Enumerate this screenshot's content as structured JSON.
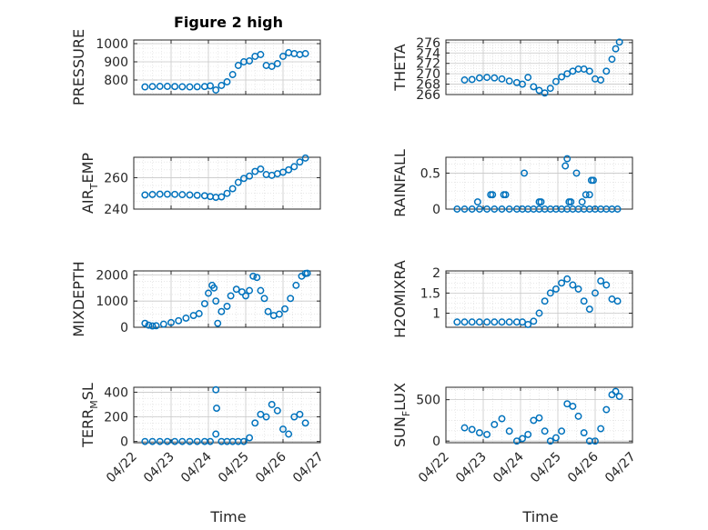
{
  "title": "Figure 2 high",
  "xlabel": "Time",
  "colors": {
    "marker": "#0072BD",
    "axes": "#262626",
    "grid": "#d9d9d9"
  },
  "chart_data": [
    {
      "type": "scatter",
      "ylabel": "PRESSURE",
      "xlim": [
        "04/22",
        "04/27"
      ],
      "ylim": [
        720,
        1020
      ],
      "yticks": [
        800,
        900,
        1000
      ],
      "xticks": [
        "04/22",
        "04/23",
        "04/24",
        "04/25",
        "04/26",
        "04/27"
      ],
      "grid": true,
      "x": [
        22.3,
        22.5,
        22.7,
        22.9,
        23.1,
        23.3,
        23.5,
        23.7,
        23.9,
        24.05,
        24.2,
        24.35,
        24.5,
        24.65,
        24.8,
        24.95,
        25.1,
        25.25,
        25.4,
        25.55,
        25.7,
        25.85,
        26.0,
        26.15,
        26.3,
        26.45,
        26.6
      ],
      "y": [
        762,
        764,
        765,
        765,
        764,
        763,
        762,
        763,
        764,
        768,
        745,
        770,
        790,
        830,
        880,
        900,
        905,
        930,
        940,
        880,
        875,
        890,
        930,
        950,
        945,
        940,
        945
      ]
    },
    {
      "type": "scatter",
      "ylabel": "THETA",
      "xlim": [
        "04/22",
        "04/27"
      ],
      "ylim": [
        266,
        276.5
      ],
      "yticks": [
        266,
        268,
        270,
        272,
        274,
        276
      ],
      "xticks": [
        "04/22",
        "04/23",
        "04/24",
        "04/25",
        "04/26",
        "04/27"
      ],
      "grid": true,
      "x": [
        22.5,
        22.7,
        22.9,
        23.1,
        23.3,
        23.5,
        23.7,
        23.9,
        24.05,
        24.2,
        24.35,
        24.5,
        24.65,
        24.8,
        24.95,
        25.1,
        25.25,
        25.4,
        25.55,
        25.7,
        25.85,
        26.0,
        26.15,
        26.3,
        26.45,
        26.55,
        26.65
      ],
      "y": [
        268.8,
        268.9,
        269.2,
        269.3,
        269.2,
        269.0,
        268.6,
        268.3,
        268.0,
        269.3,
        267.5,
        266.8,
        266.3,
        267.2,
        268.5,
        269.4,
        270.0,
        270.5,
        270.9,
        270.9,
        270.5,
        269.0,
        268.8,
        270.5,
        272.8,
        274.8,
        276.1
      ]
    },
    {
      "type": "scatter",
      "ylabel": "AIR_TEMP",
      "xlim": [
        "04/22",
        "04/27"
      ],
      "ylim": [
        240,
        273
      ],
      "yticks": [
        240,
        260
      ],
      "xticks": [
        "04/22",
        "04/23",
        "04/24",
        "04/25",
        "04/26",
        "04/27"
      ],
      "grid": true,
      "x": [
        22.3,
        22.5,
        22.7,
        22.9,
        23.1,
        23.3,
        23.5,
        23.7,
        23.9,
        24.05,
        24.2,
        24.35,
        24.5,
        24.65,
        24.8,
        24.95,
        25.1,
        25.25,
        25.4,
        25.55,
        25.7,
        25.85,
        26.0,
        26.15,
        26.3,
        26.45,
        26.6
      ],
      "y": [
        249,
        249.3,
        249.5,
        249.5,
        249.4,
        249.2,
        249.0,
        248.8,
        248.5,
        248.0,
        247.5,
        247.8,
        250,
        253,
        257,
        259.5,
        261,
        264,
        265.5,
        262,
        261.5,
        262.5,
        263.5,
        265,
        267,
        270,
        272.5
      ]
    },
    {
      "type": "scatter",
      "ylabel": "RAINFALL",
      "xlim": [
        "04/22",
        "04/27"
      ],
      "ylim": [
        0,
        0.72
      ],
      "yticks": [
        0,
        0.5
      ],
      "xticks": [
        "04/22",
        "04/23",
        "04/24",
        "04/25",
        "04/26",
        "04/27"
      ],
      "grid": true,
      "x": [
        22.3,
        22.5,
        22.7,
        22.9,
        23.1,
        23.3,
        23.5,
        23.7,
        23.9,
        24.05,
        24.2,
        24.35,
        24.5,
        24.65,
        24.8,
        24.95,
        25.1,
        25.25,
        25.4,
        25.55,
        25.7,
        25.85,
        26.0,
        26.15,
        26.3,
        26.45,
        26.6,
        22.85,
        23.2,
        23.25,
        23.55,
        23.6,
        24.1,
        24.5,
        24.55,
        25.2,
        25.25,
        25.3,
        25.35,
        25.5,
        25.65,
        25.75,
        25.85,
        25.9,
        25.95
      ],
      "y": [
        0,
        0,
        0,
        0,
        0,
        0,
        0,
        0,
        0,
        0,
        0,
        0,
        0,
        0,
        0,
        0,
        0,
        0,
        0,
        0,
        0,
        0,
        0,
        0,
        0,
        0,
        0,
        0.1,
        0.2,
        0.2,
        0.2,
        0.2,
        0.5,
        0.1,
        0.1,
        0.6,
        0.7,
        0.1,
        0.1,
        0.5,
        0.1,
        0.2,
        0.2,
        0.4,
        0.4
      ]
    },
    {
      "type": "scatter",
      "ylabel": "MIXDEPTH",
      "xlim": [
        "04/22",
        "04/27"
      ],
      "ylim": [
        0,
        2150
      ],
      "yticks": [
        0,
        1000,
        2000
      ],
      "xticks": [
        "04/22",
        "04/23",
        "04/24",
        "04/25",
        "04/26",
        "04/27"
      ],
      "grid": true,
      "x": [
        22.3,
        22.4,
        22.5,
        22.6,
        22.8,
        23.0,
        23.2,
        23.4,
        23.6,
        23.75,
        23.9,
        24.0,
        24.1,
        24.15,
        24.2,
        24.25,
        24.35,
        24.5,
        24.6,
        24.75,
        24.9,
        25.0,
        25.1,
        25.2,
        25.3,
        25.4,
        25.5,
        25.6,
        25.75,
        25.9,
        26.05,
        26.2,
        26.35,
        26.5,
        26.6,
        26.65
      ],
      "y": [
        150,
        80,
        50,
        60,
        120,
        180,
        250,
        350,
        450,
        520,
        900,
        1300,
        1600,
        1500,
        1000,
        150,
        600,
        800,
        1200,
        1450,
        1350,
        1200,
        1400,
        1950,
        1900,
        1400,
        1100,
        600,
        450,
        500,
        700,
        1100,
        1600,
        1950,
        2050,
        2060
      ]
    },
    {
      "type": "scatter",
      "ylabel": "H2OMIXRA",
      "xlim": [
        "04/22",
        "04/27"
      ],
      "ylim": [
        0.65,
        2.05
      ],
      "yticks": [
        1,
        1.5,
        2
      ],
      "xticks": [
        "04/22",
        "04/23",
        "04/24",
        "04/25",
        "04/26",
        "04/27"
      ],
      "grid": true,
      "x": [
        22.3,
        22.5,
        22.7,
        22.9,
        23.1,
        23.3,
        23.5,
        23.7,
        23.9,
        24.05,
        24.2,
        24.35,
        24.5,
        24.65,
        24.8,
        24.95,
        25.1,
        25.25,
        25.4,
        25.55,
        25.7,
        25.85,
        26.0,
        26.15,
        26.3,
        26.45,
        26.6
      ],
      "y": [
        0.78,
        0.78,
        0.78,
        0.78,
        0.78,
        0.78,
        0.78,
        0.78,
        0.78,
        0.78,
        0.72,
        0.8,
        1.0,
        1.3,
        1.5,
        1.6,
        1.75,
        1.85,
        1.7,
        1.6,
        1.3,
        1.1,
        1.5,
        1.8,
        1.7,
        1.35,
        1.3
      ]
    },
    {
      "type": "scatter",
      "ylabel": "TERR_MSL",
      "xlim": [
        "04/22",
        "04/27"
      ],
      "ylim": [
        -10,
        440
      ],
      "yticks": [
        0,
        200,
        400
      ],
      "xticks": [
        "04/22",
        "04/23",
        "04/24",
        "04/25",
        "04/26",
        "04/27"
      ],
      "grid": true,
      "x": [
        22.3,
        22.5,
        22.7,
        22.9,
        23.1,
        23.3,
        23.5,
        23.7,
        23.9,
        24.05,
        24.2,
        24.35,
        24.5,
        24.65,
        24.8,
        24.95,
        25.1,
        25.25,
        25.4,
        25.55,
        25.7,
        25.85,
        26.0,
        26.15,
        26.3,
        26.45,
        26.6,
        24.2,
        24.22
      ],
      "y": [
        0,
        0,
        0,
        0,
        0,
        0,
        0,
        0,
        0,
        0,
        60,
        0,
        0,
        0,
        0,
        0,
        30,
        150,
        220,
        200,
        300,
        250,
        100,
        60,
        200,
        220,
        150,
        420,
        270
      ]
    },
    {
      "type": "scatter",
      "ylabel": "SUN_FLUX",
      "xlim": [
        "04/22",
        "04/27"
      ],
      "ylim": [
        -20,
        650
      ],
      "yticks": [
        0,
        500
      ],
      "xticks": [
        "04/22",
        "04/23",
        "04/24",
        "04/25",
        "04/26",
        "04/27"
      ],
      "grid": true,
      "x": [
        22.5,
        22.7,
        22.9,
        23.1,
        23.3,
        23.5,
        23.7,
        23.9,
        24.05,
        24.2,
        24.35,
        24.5,
        24.65,
        24.8,
        24.95,
        25.1,
        25.25,
        25.4,
        25.55,
        25.7,
        25.85,
        26.0,
        26.15,
        26.3,
        26.45,
        26.55,
        26.65
      ],
      "y": [
        160,
        140,
        100,
        80,
        200,
        270,
        120,
        0,
        30,
        80,
        250,
        280,
        120,
        0,
        40,
        120,
        450,
        420,
        300,
        100,
        0,
        0,
        150,
        380,
        560,
        600,
        540
      ]
    }
  ]
}
